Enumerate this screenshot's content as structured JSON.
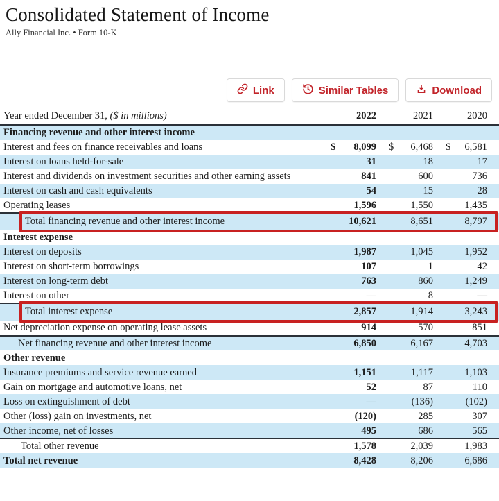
{
  "header": {
    "title": "Consolidated Statement of Income",
    "subtitle": "Ally Financial Inc. • Form 10-K"
  },
  "toolbar": {
    "buttons": [
      {
        "label": "Link",
        "icon": "link-icon"
      },
      {
        "label": "Similar Tables",
        "icon": "history-icon"
      },
      {
        "label": "Download",
        "icon": "download-icon"
      }
    ]
  },
  "colors": {
    "accent_red": "#c2242a",
    "row_stripe_blue": "#cde8f6",
    "annotation_box_red": "#c82121",
    "rule_dark": "#2b3138"
  },
  "table": {
    "header": {
      "label": "Year ended December 31,",
      "note": "($ in millions)",
      "columns": [
        "2022",
        "2021",
        "2020"
      ]
    },
    "rows": [
      {
        "label": "Financing revenue and other interest income",
        "section": true
      },
      {
        "label": "Interest and fees on finance receivables and loans",
        "values": [
          "8,099",
          "6,468",
          "6,581"
        ],
        "dollar": true
      },
      {
        "label": "Interest on loans held-for-sale",
        "values": [
          "31",
          "18",
          "17"
        ]
      },
      {
        "label": "Interest and dividends on investment securities and other earning assets",
        "values": [
          "841",
          "600",
          "736"
        ]
      },
      {
        "label": "Interest on cash and cash equivalents",
        "values": [
          "54",
          "15",
          "28"
        ]
      },
      {
        "label": "Operating leases",
        "values": [
          "1,596",
          "1,550",
          "1,435"
        ]
      },
      {
        "label": "Total financing revenue and other interest income",
        "values": [
          "10,621",
          "8,651",
          "8,797"
        ],
        "indent": 36,
        "rule": "stub",
        "highlight": true
      },
      {
        "label": "Interest expense",
        "section": true
      },
      {
        "label": "Interest on deposits",
        "values": [
          "1,987",
          "1,045",
          "1,952"
        ]
      },
      {
        "label": "Interest on short-term borrowings",
        "values": [
          "107",
          "1",
          "42"
        ]
      },
      {
        "label": "Interest on long-term debt",
        "values": [
          "763",
          "860",
          "1,249"
        ]
      },
      {
        "label": "Interest on other",
        "values": [
          "—",
          "8",
          "—"
        ]
      },
      {
        "label": "Total interest expense",
        "values": [
          "2,857",
          "1,914",
          "3,243"
        ],
        "indent": 36,
        "rule": "stub",
        "highlight": true
      },
      {
        "label": "Net depreciation expense on operating lease assets",
        "values": [
          "914",
          "570",
          "851"
        ]
      },
      {
        "label": "Net financing revenue and other interest income",
        "values": [
          "6,850",
          "6,167",
          "4,703"
        ],
        "indent": 26,
        "rule": "full"
      },
      {
        "label": "Other revenue",
        "section": true
      },
      {
        "label": "Insurance premiums and service revenue earned",
        "values": [
          "1,151",
          "1,117",
          "1,103"
        ]
      },
      {
        "label": "Gain on mortgage and automotive loans, net",
        "values": [
          "52",
          "87",
          "110"
        ]
      },
      {
        "label": "Loss on extinguishment of debt",
        "values": [
          "—",
          "(136)",
          "(102)"
        ]
      },
      {
        "label": "Other (loss) gain on investments, net",
        "values": [
          "(120)",
          "285",
          "307"
        ]
      },
      {
        "label": "Other income, net of losses",
        "values": [
          "495",
          "686",
          "565"
        ]
      },
      {
        "label": "Total other revenue",
        "values": [
          "1,578",
          "2,039",
          "1,983"
        ],
        "indent": 30,
        "rule": "full"
      },
      {
        "label": "Total net revenue",
        "values": [
          "8,428",
          "8,206",
          "6,686"
        ],
        "bold": true
      }
    ]
  }
}
